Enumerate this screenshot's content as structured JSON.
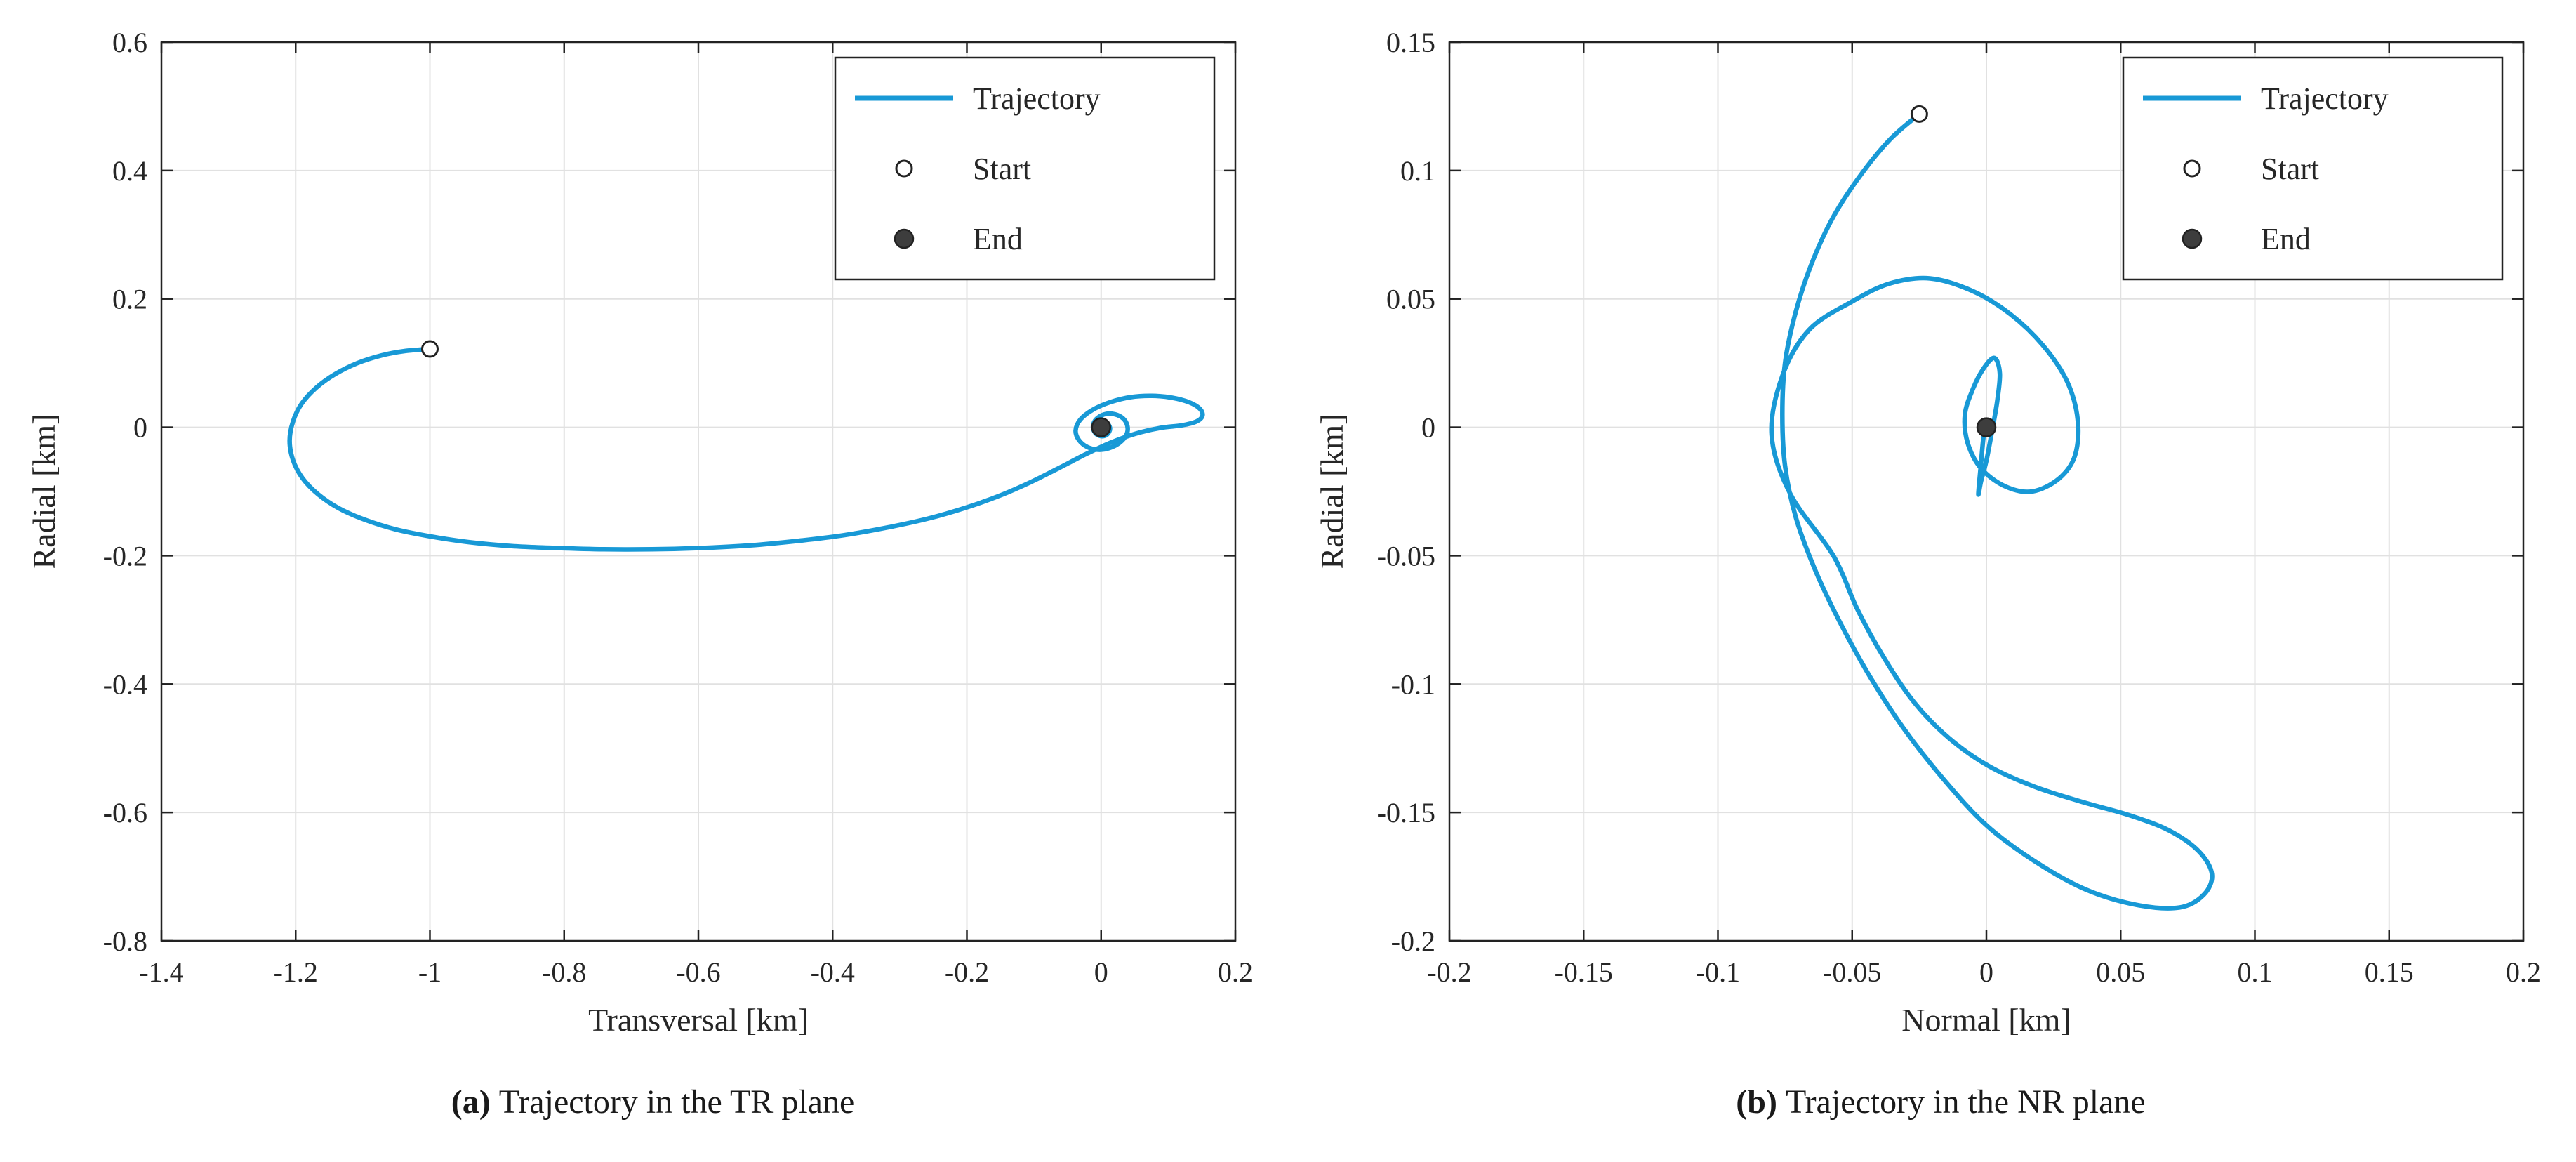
{
  "figure": {
    "colors": {
      "trajectory": "#1899D6",
      "grid": "#E1E1E1",
      "axis": "#222222",
      "tick_text": "#262626",
      "end_fill": "#3D3D3D",
      "start_fill": "#FFFFFF",
      "legend_bg": "#FFFFFF",
      "background": "#FFFFFF"
    }
  },
  "chart_data": [
    {
      "type": "line",
      "title": "",
      "xlabel": "Transversal [km]",
      "ylabel": "Radial [km]",
      "xlim": [
        -1.4,
        0.2
      ],
      "ylim": [
        -0.8,
        0.6
      ],
      "grid": true,
      "legend_position": "top-right",
      "caption": {
        "label": "(a)",
        "text": "Trajectory in the TR plane"
      },
      "legend": [
        {
          "label": "Trajectory",
          "marker": "line"
        },
        {
          "label": "Start",
          "marker": "open-circle"
        },
        {
          "label": "End",
          "marker": "filled-circle"
        }
      ],
      "xticks": [
        {
          "v": -1.4,
          "label": "-1.4"
        },
        {
          "v": -1.2,
          "label": "-1.2"
        },
        {
          "v": -1.0,
          "label": "-1"
        },
        {
          "v": -0.8,
          "label": "-0.8"
        },
        {
          "v": -0.6,
          "label": "-0.6"
        },
        {
          "v": -0.4,
          "label": "-0.4"
        },
        {
          "v": -0.2,
          "label": "-0.2"
        },
        {
          "v": 0.0,
          "label": "0"
        },
        {
          "v": 0.2,
          "label": "0.2"
        }
      ],
      "yticks": [
        {
          "v": -0.8,
          "label": "-0.8"
        },
        {
          "v": -0.6,
          "label": "-0.6"
        },
        {
          "v": -0.4,
          "label": "-0.4"
        },
        {
          "v": -0.2,
          "label": "-0.2"
        },
        {
          "v": 0.0,
          "label": "0"
        },
        {
          "v": 0.2,
          "label": "0.2"
        },
        {
          "v": 0.4,
          "label": "0.4"
        },
        {
          "v": 0.6,
          "label": "0.6"
        }
      ],
      "start_point": [
        -1.0,
        0.122
      ],
      "end_point": [
        0.0,
        0.0
      ],
      "series": [
        {
          "name": "Trajectory",
          "points": [
            [
              -1.0,
              0.122
            ],
            [
              -1.036,
              0.119
            ],
            [
              -1.072,
              0.112
            ],
            [
              -1.108,
              0.1
            ],
            [
              -1.141,
              0.083
            ],
            [
              -1.169,
              0.062
            ],
            [
              -1.191,
              0.037
            ],
            [
              -1.204,
              0.009
            ],
            [
              -1.209,
              -0.021
            ],
            [
              -1.204,
              -0.051
            ],
            [
              -1.19,
              -0.079
            ],
            [
              -1.167,
              -0.104
            ],
            [
              -1.136,
              -0.126
            ],
            [
              -1.097,
              -0.144
            ],
            [
              -1.051,
              -0.159
            ],
            [
              -0.999,
              -0.17
            ],
            [
              -0.941,
              -0.179
            ],
            [
              -0.878,
              -0.185
            ],
            [
              -0.811,
              -0.188
            ],
            [
              -0.741,
              -0.19
            ],
            [
              -0.669,
              -0.19
            ],
            [
              -0.596,
              -0.188
            ],
            [
              -0.523,
              -0.184
            ],
            [
              -0.452,
              -0.177
            ],
            [
              -0.383,
              -0.168
            ],
            [
              -0.318,
              -0.156
            ],
            [
              -0.257,
              -0.142
            ],
            [
              -0.201,
              -0.125
            ],
            [
              -0.15,
              -0.106
            ],
            [
              -0.104,
              -0.085
            ],
            [
              -0.062,
              -0.063
            ],
            [
              -0.023,
              -0.042
            ],
            [
              0.014,
              -0.024
            ],
            [
              0.051,
              -0.01
            ],
            [
              0.088,
              -0.001
            ],
            [
              0.12,
              0.003
            ],
            [
              0.142,
              0.009
            ],
            [
              0.151,
              0.018
            ],
            [
              0.147,
              0.029
            ],
            [
              0.131,
              0.039
            ],
            [
              0.106,
              0.046
            ],
            [
              0.076,
              0.049
            ],
            [
              0.044,
              0.047
            ],
            [
              0.013,
              0.039
            ],
            [
              -0.013,
              0.027
            ],
            [
              -0.031,
              0.012
            ],
            [
              -0.038,
              -0.005
            ],
            [
              -0.033,
              -0.02
            ],
            [
              -0.02,
              -0.031
            ],
            [
              -0.002,
              -0.035
            ],
            [
              0.016,
              -0.031
            ],
            [
              0.031,
              -0.021
            ],
            [
              0.039,
              -0.008
            ],
            [
              0.038,
              0.006
            ],
            [
              0.03,
              0.016
            ],
            [
              0.017,
              0.021
            ],
            [
              0.004,
              0.02
            ],
            [
              -0.007,
              0.013
            ],
            [
              -0.012,
              0.003
            ],
            [
              -0.01,
              -0.007
            ],
            [
              -0.003,
              -0.013
            ],
            [
              0.006,
              -0.013
            ],
            [
              0.012,
              -0.007
            ],
            [
              0.013,
              0.0
            ],
            [
              0.009,
              0.006
            ],
            [
              0.003,
              0.007
            ],
            [
              -0.002,
              0.004
            ],
            [
              -0.003,
              -0.001
            ],
            [
              0.0,
              -0.003
            ],
            [
              0.003,
              -0.001
            ],
            [
              0.002,
              0.002
            ],
            [
              0.0,
              0.001
            ]
          ]
        }
      ]
    },
    {
      "type": "line",
      "title": "",
      "xlabel": "Normal [km]",
      "ylabel": "Radial [km]",
      "xlim": [
        -0.2,
        0.2
      ],
      "ylim": [
        -0.2,
        0.15
      ],
      "grid": true,
      "legend_position": "top-right",
      "caption": {
        "label": "(b)",
        "text": "Trajectory in the NR plane"
      },
      "legend": [
        {
          "label": "Trajectory",
          "marker": "line"
        },
        {
          "label": "Start",
          "marker": "open-circle"
        },
        {
          "label": "End",
          "marker": "filled-circle"
        }
      ],
      "xticks": [
        {
          "v": -0.2,
          "label": "-0.2"
        },
        {
          "v": -0.15,
          "label": "-0.15"
        },
        {
          "v": -0.1,
          "label": "-0.1"
        },
        {
          "v": -0.05,
          "label": "-0.05"
        },
        {
          "v": 0.0,
          "label": "0"
        },
        {
          "v": 0.05,
          "label": "0.05"
        },
        {
          "v": 0.1,
          "label": "0.1"
        },
        {
          "v": 0.15,
          "label": "0.15"
        },
        {
          "v": 0.2,
          "label": "0.2"
        }
      ],
      "yticks": [
        {
          "v": -0.2,
          "label": "-0.2"
        },
        {
          "v": -0.15,
          "label": "-0.15"
        },
        {
          "v": -0.1,
          "label": "-0.1"
        },
        {
          "v": -0.05,
          "label": "-0.05"
        },
        {
          "v": 0.0,
          "label": "0"
        },
        {
          "v": 0.05,
          "label": "0.05"
        },
        {
          "v": 0.1,
          "label": "0.1"
        },
        {
          "v": 0.15,
          "label": "0.15"
        }
      ],
      "start_point": [
        -0.025,
        0.122
      ],
      "end_point": [
        0.0,
        0.0
      ],
      "series": [
        {
          "name": "Trajectory",
          "points": [
            [
              -0.025,
              0.122
            ],
            [
              -0.036,
              0.112
            ],
            [
              -0.047,
              0.098
            ],
            [
              -0.057,
              0.082
            ],
            [
              -0.065,
              0.064
            ],
            [
              -0.071,
              0.045
            ],
            [
              -0.075,
              0.025
            ],
            [
              -0.076,
              0.005
            ],
            [
              -0.075,
              -0.015
            ],
            [
              -0.071,
              -0.035
            ],
            [
              -0.064,
              -0.055
            ],
            [
              -0.055,
              -0.075
            ],
            [
              -0.044,
              -0.096
            ],
            [
              -0.031,
              -0.117
            ],
            [
              -0.016,
              -0.137
            ],
            [
              0.0,
              -0.155
            ],
            [
              0.018,
              -0.169
            ],
            [
              0.037,
              -0.18
            ],
            [
              0.056,
              -0.186
            ],
            [
              0.072,
              -0.187
            ],
            [
              0.081,
              -0.182
            ],
            [
              0.084,
              -0.174
            ],
            [
              0.079,
              -0.165
            ],
            [
              0.068,
              -0.157
            ],
            [
              0.053,
              -0.151
            ],
            [
              0.036,
              -0.146
            ],
            [
              0.018,
              -0.14
            ],
            [
              0.001,
              -0.132
            ],
            [
              -0.014,
              -0.121
            ],
            [
              -0.027,
              -0.107
            ],
            [
              -0.038,
              -0.09
            ],
            [
              -0.048,
              -0.071
            ],
            [
              -0.057,
              -0.05
            ],
            [
              -0.073,
              -0.026
            ],
            [
              -0.08,
              -0.003
            ],
            [
              -0.076,
              0.02
            ],
            [
              -0.066,
              0.038
            ],
            [
              -0.05,
              0.049
            ],
            [
              -0.036,
              0.056
            ],
            [
              -0.021,
              0.058
            ],
            [
              -0.005,
              0.053
            ],
            [
              0.009,
              0.044
            ],
            [
              0.021,
              0.032
            ],
            [
              0.03,
              0.018
            ],
            [
              0.034,
              0.003
            ],
            [
              0.033,
              -0.011
            ],
            [
              0.027,
              -0.02
            ],
            [
              0.017,
              -0.025
            ],
            [
              0.007,
              -0.023
            ],
            [
              -0.002,
              -0.016
            ],
            [
              -0.007,
              -0.006
            ],
            [
              -0.008,
              0.005
            ],
            [
              -0.005,
              0.015
            ],
            [
              -0.001,
              0.023
            ],
            [
              0.003,
              0.027
            ],
            [
              0.005,
              0.021
            ],
            [
              0.004,
              0.01
            ],
            [
              0.002,
              -0.002
            ],
            [
              0.0,
              -0.013
            ],
            [
              -0.002,
              -0.021
            ],
            [
              -0.003,
              -0.026
            ],
            [
              -0.002,
              -0.014
            ],
            [
              -0.001,
              -0.003
            ],
            [
              0.0,
              0.001
            ]
          ]
        }
      ]
    }
  ]
}
